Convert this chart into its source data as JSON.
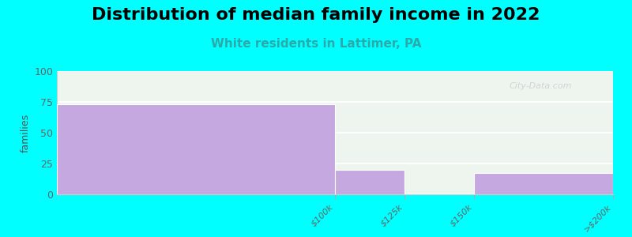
{
  "title": "Distribution of median family income in 2022",
  "subtitle": "White residents in Lattimer, PA",
  "bar_color": "#c4a8df",
  "background_color": "#00ffff",
  "plot_bg_color": "#eef5ee",
  "ylabel": "families",
  "ylim": [
    0,
    100
  ],
  "yticks": [
    0,
    25,
    50,
    75,
    100
  ],
  "title_fontsize": 16,
  "subtitle_fontsize": 11,
  "subtitle_color": "#2aaaaa",
  "watermark": "City-Data.com",
  "bin_edges": [
    0,
    100,
    125,
    150,
    200
  ],
  "values": [
    73,
    20,
    0,
    17
  ],
  "tick_labels": [
    "$100k",
    "$125k",
    "$150k",
    ">$200k"
  ]
}
